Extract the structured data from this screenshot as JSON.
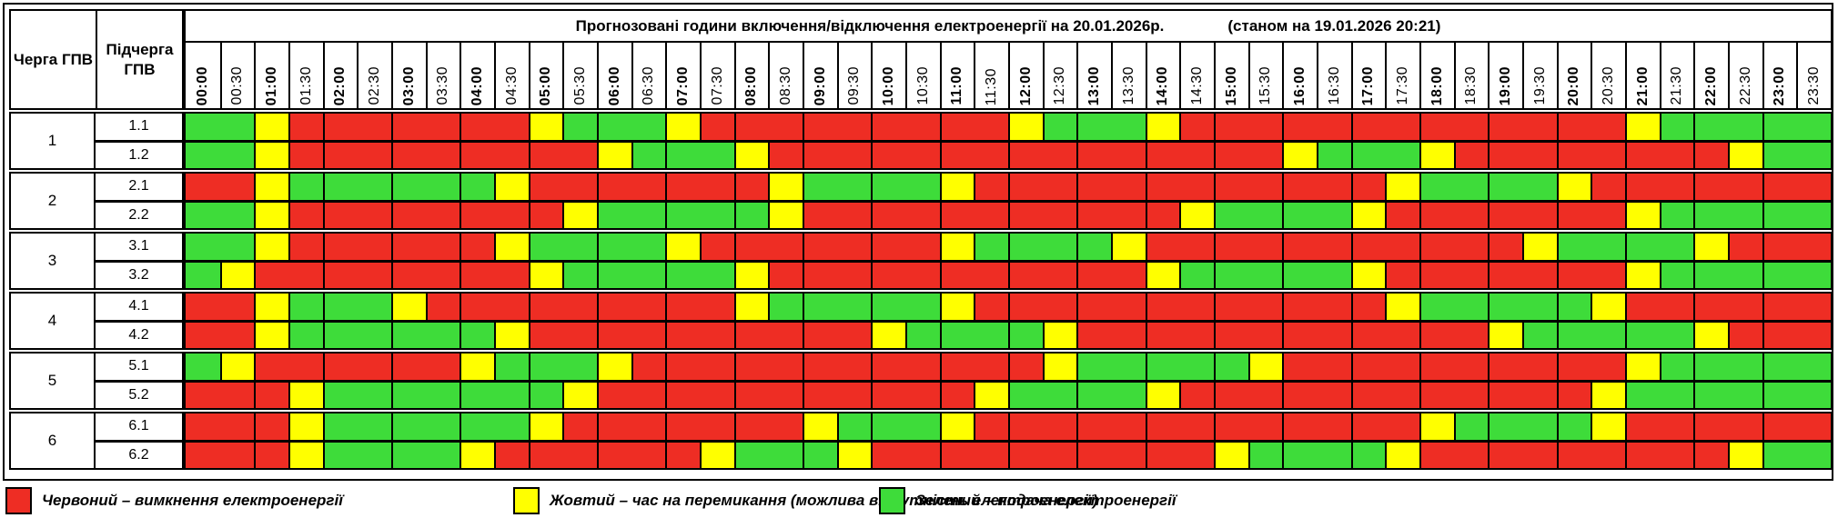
{
  "colors": {
    "red": "#ee2d24",
    "yellow": "#ffff00",
    "green": "#3edc3a"
  },
  "header": {
    "queue_col": "Черга ГПВ",
    "subqueue_col": "Підчерга ГПВ"
  },
  "chart_data": {
    "type": "heatmap",
    "title": "Прогнозовані години включення/відключення електроенергії на 20.01.2026р.",
    "subtitle": "(станом на 19.01.2026 20:21)",
    "x": [
      "00:00",
      "00:30",
      "01:00",
      "01:30",
      "02:00",
      "02:30",
      "03:00",
      "03:30",
      "04:00",
      "04:30",
      "05:00",
      "05:30",
      "06:00",
      "06:30",
      "07:00",
      "07:30",
      "08:00",
      "08:30",
      "09:00",
      "09:30",
      "10:00",
      "10:30",
      "11:00",
      "11:30",
      "12:00",
      "12:30",
      "13:00",
      "13:30",
      "14:00",
      "14:30",
      "15:00",
      "15:30",
      "16:00",
      "16:30",
      "17:00",
      "17:30",
      "18:00",
      "18:30",
      "19:00",
      "19:30",
      "20:00",
      "20:30",
      "21:00",
      "21:30",
      "22:00",
      "22:30",
      "23:00",
      "23:30"
    ],
    "states": {
      "R": "вимкнення електроенергії",
      "Y": "час на перемикання (можлива відсутність електроенергії)",
      "G": "подача електроенергії"
    },
    "groups": [
      {
        "queue": "1",
        "rows": [
          {
            "label": "1.1",
            "cells": "GGYRRRRRRRYGGGYRRRRRRRRRYGGGYRRRRRRRRRRRRRYGGGGG"
          },
          {
            "label": "1.2",
            "cells": "GGYRRRRRRRRRYGGGYRRRRRRRRRRRRRRRYGGGYRRRRRRRRYGG"
          }
        ]
      },
      {
        "queue": "2",
        "rows": [
          {
            "label": "2.1",
            "cells": "RRYGGGGGGYRRRRRRRYGGGGYRRRRRRRRRRRRYGGGGYRRRRRRR"
          },
          {
            "label": "2.2",
            "cells": "GGYRRRRRRRRYGGGGGYRRRRRRRRRRRYGGGGYRRRRRRRYGGGGG"
          }
        ]
      },
      {
        "queue": "3",
        "rows": [
          {
            "label": "3.1",
            "cells": "GGYRRRRRRYGGGGYRRRRRRRYGGGGYRRRRRRRRRRRYGGGGYRRR"
          },
          {
            "label": "3.2",
            "cells": "GYRRRRRRRRYGGGGGYRRRRRRRRRRRYGGGGGYRRRRRRRYGGGGG"
          }
        ]
      },
      {
        "queue": "4",
        "rows": [
          {
            "label": "4.1",
            "cells": "RRYGGGYRRRRRRRRRYGGGGGYRRRRRRRRRRRRYGGGGGYRRRRRR"
          },
          {
            "label": "4.2",
            "cells": "RRYGGGGGGYRRRRRRRRRRYGGGGYRRRRRRRRRRRRYGGGGGYRRR"
          }
        ]
      },
      {
        "queue": "5",
        "rows": [
          {
            "label": "5.1",
            "cells": "GYRRRRRRYGGGYRRRRRRRRRRRRYGGGGGYRRRRRRRRRRYGGGGG"
          },
          {
            "label": "5.2",
            "cells": "RRRYGGGGGGGYRRRRRRRRRRRYGGGGYRRRRRRRRRRRRYGGGGGG"
          }
        ]
      },
      {
        "queue": "6",
        "rows": [
          {
            "label": "6.1",
            "cells": "RRRYGGGGGGYRRRRRRRYGGGYRRRRRRRRRRRRRYGGGGYRRRRRR"
          },
          {
            "label": "6.2",
            "cells": "RRRYGGGGYRRRRRRYGGGYRRRRRRRRRRYGGGGYRRRRRRRRRYGG"
          }
        ]
      }
    ],
    "legend": [
      {
        "state": "R",
        "label": "Червоний – вимкнення електроенергії"
      },
      {
        "state": "Y",
        "label": "Жовтий – час на перемикання (можлива відсутність електроенергії)"
      },
      {
        "state": "G",
        "label": "Зелений – подача електроенергії"
      }
    ],
    "legend_position": "bottom",
    "grid": true
  }
}
